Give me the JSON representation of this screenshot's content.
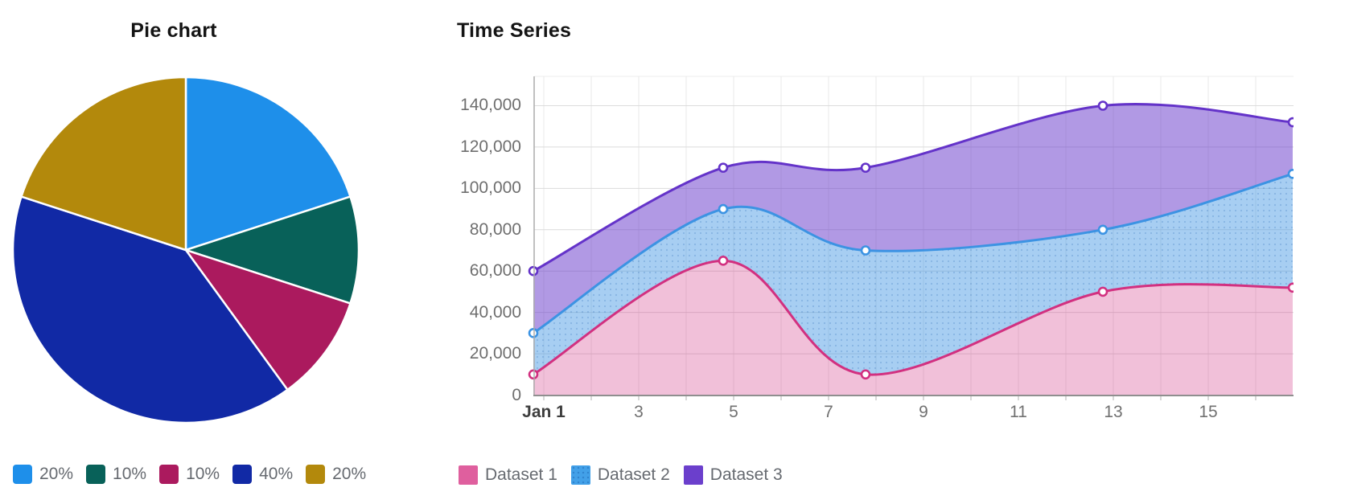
{
  "chart_data": [
    {
      "type": "pie",
      "title": "Pie chart",
      "labels": [
        "20%",
        "10%",
        "10%",
        "40%",
        "20%"
      ],
      "values": [
        20,
        10,
        10,
        40,
        20
      ],
      "colors": [
        "#1E8FEA",
        "#086159",
        "#AB1A5E",
        "#1129A5",
        "#B3890C"
      ],
      "legend_position": "bottom",
      "slice_border_color": "#FFFFFF"
    },
    {
      "type": "area",
      "title": "Time Series",
      "x": [
        "Jan 1",
        "Jan 5",
        "Jan 8",
        "Jan 13",
        "Jan 17"
      ],
      "x_days": [
        1,
        5,
        8,
        13,
        17
      ],
      "x_tick_labels": [
        "Jan 1",
        "3",
        "5",
        "7",
        "9",
        "11",
        "13",
        "15"
      ],
      "x_tick_days": [
        1,
        3,
        5,
        7,
        9,
        11,
        13,
        15
      ],
      "y_ticks": [
        0,
        20000,
        40000,
        60000,
        80000,
        100000,
        120000,
        140000
      ],
      "y_tick_labels": [
        "0",
        "20,000",
        "40,000",
        "60,000",
        "80,000",
        "100,000",
        "120,000",
        "140,000"
      ],
      "ylim": [
        0,
        154000
      ],
      "grid": true,
      "legend_position": "bottom",
      "series": [
        {
          "name": "Dataset 1",
          "values": [
            10000,
            65000,
            10000,
            50000,
            52000
          ],
          "line_color": "#D23080",
          "fill_color": "rgba(210,48,128,0.30)",
          "legend_color": "#DF5F9E",
          "pattern": "none"
        },
        {
          "name": "Dataset 2",
          "values": [
            30000,
            90000,
            70000,
            80000,
            107000
          ],
          "line_color": "#3C93E3",
          "fill_color": "rgba(60,147,227,0.45)",
          "legend_color": "#42A0E8",
          "pattern": "dots"
        },
        {
          "name": "Dataset 3",
          "values": [
            60000,
            110000,
            110000,
            140000,
            132000
          ],
          "line_color": "#6433C9",
          "fill_color": "rgba(100,51,201,0.50)",
          "legend_color": "#6B3FCC",
          "pattern": "none"
        }
      ]
    }
  ]
}
